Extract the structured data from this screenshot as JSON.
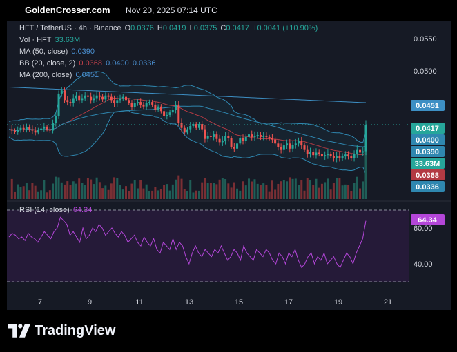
{
  "header": {
    "site": "GoldenCrosser.com",
    "datetime": "Nov 20, 2025 07:14 UTC"
  },
  "legend": {
    "symbol": "HFT / TetherUS · 4h · Binance",
    "o_label": "O",
    "o": "0.0376",
    "h_label": "H",
    "h": "0.0419",
    "l_label": "L",
    "l": "0.0375",
    "c_label": "C",
    "c": "0.0417",
    "change": "+0.0041 (+10.90%)",
    "vol_label": "Vol · HFT",
    "vol": "33.63M",
    "ma50_label": "MA (50, close)",
    "ma50": "0.0390",
    "bb_label": "BB (20, close, 2)",
    "bb_basis": "0.0368",
    "bb_upper": "0.0400",
    "bb_lower": "0.0336",
    "ma200_label": "MA (200, close)",
    "ma200": "0.0451",
    "rsi_label": "RSI (14, close)",
    "rsi": "64.34"
  },
  "footer": {
    "brand": "TradingView"
  },
  "colors": {
    "up": "#26a69a",
    "down": "#ef5350",
    "ma200": "#3d8fc4",
    "bb": "#2f87b0",
    "bb_basis": "#b33a43",
    "rsi": "#b446d9",
    "panel": "#161a25"
  },
  "chart_data": {
    "type": "candlestick",
    "price_axis": {
      "ticks": [
        "0.0550",
        "0.0500"
      ]
    },
    "rsi_axis": {
      "ticks": [
        "60.00",
        "40.00"
      ],
      "ylim": [
        30,
        70
      ]
    },
    "x_axis": {
      "ticks": [
        "7",
        "9",
        "11",
        "13",
        "15",
        "17",
        "19",
        "21"
      ]
    },
    "price_labels": [
      {
        "name": "MA 200",
        "value": "0.0451",
        "color": "#3d8fc4"
      },
      {
        "name": "Close",
        "value": "0.0417",
        "color": "#26a69a"
      },
      {
        "name": "BB upper",
        "value": "0.0400",
        "color": "#2f87b0"
      },
      {
        "name": "MA 50",
        "value": "0.0390",
        "color": "#2f87b0"
      },
      {
        "name": "Volume",
        "value": "33.63M",
        "color": "#26a69a"
      },
      {
        "name": "BB basis",
        "value": "0.0368",
        "color": "#b33a43"
      },
      {
        "name": "BB lower",
        "value": "0.0336",
        "color": "#2f87b0"
      }
    ],
    "rsi_label_value": "64.34",
    "close_path": [
      0.041,
      0.0408,
      0.0406,
      0.0409,
      0.0412,
      0.041,
      0.0413,
      0.041,
      0.0408,
      0.0405,
      0.0409,
      0.0411,
      0.0414,
      0.041,
      0.0408,
      0.042,
      0.043,
      0.0465,
      0.047,
      0.0455,
      0.0452,
      0.045,
      0.0458,
      0.0462,
      0.0455,
      0.0458,
      0.0462,
      0.046,
      0.0455,
      0.0458,
      0.0462,
      0.046,
      0.0456,
      0.0462,
      0.046,
      0.0455,
      0.045,
      0.0455,
      0.0458,
      0.046,
      0.0455,
      0.045,
      0.0444,
      0.045,
      0.0452,
      0.0448,
      0.0445,
      0.045,
      0.0452,
      0.0448,
      0.044,
      0.0445,
      0.0438,
      0.043,
      0.0432,
      0.0436,
      0.044,
      0.0448,
      0.042,
      0.0412,
      0.0405,
      0.041,
      0.0415,
      0.0418,
      0.0412,
      0.0418,
      0.041,
      0.0395,
      0.04,
      0.0398,
      0.0402,
      0.0395,
      0.039,
      0.0392,
      0.04,
      0.0396,
      0.0383,
      0.038,
      0.0388,
      0.0396,
      0.0392,
      0.0398,
      0.0402,
      0.0398,
      0.04,
      0.0401,
      0.0398,
      0.04,
      0.0398,
      0.0396,
      0.0394,
      0.0388,
      0.0382,
      0.0378,
      0.0385,
      0.0388,
      0.038,
      0.0386,
      0.0388,
      0.0392,
      0.0385,
      0.0378,
      0.0372,
      0.0375,
      0.037,
      0.0374,
      0.0372,
      0.0368,
      0.037,
      0.0372,
      0.0369,
      0.0365,
      0.0368,
      0.0366,
      0.0368,
      0.0371,
      0.0368,
      0.0365,
      0.0372,
      0.0378,
      0.0374,
      0.0376,
      0.0417
    ],
    "rsi_path": [
      55,
      57,
      56,
      54,
      55,
      53,
      57,
      55,
      54,
      52,
      55,
      58,
      56,
      54,
      58,
      60,
      66,
      64,
      62,
      56,
      58,
      55,
      52,
      60,
      54,
      56,
      60,
      58,
      62,
      60,
      56,
      58,
      60,
      57,
      55,
      58,
      56,
      52,
      54,
      56,
      52,
      50,
      55,
      52,
      50,
      54,
      48,
      46,
      52,
      50,
      48,
      54,
      48,
      52,
      50,
      44,
      40,
      46,
      50,
      46,
      44,
      48,
      46,
      44,
      48,
      46,
      50,
      46,
      42,
      44,
      48,
      46,
      42,
      50,
      46,
      44,
      42,
      48,
      46,
      44,
      48,
      46,
      42,
      40,
      46,
      44,
      40,
      46,
      44,
      48,
      42,
      38,
      40,
      44,
      46,
      40,
      44,
      42,
      46,
      40,
      42,
      44,
      40,
      38,
      42,
      46,
      44,
      40,
      46,
      50,
      54,
      64
    ]
  }
}
